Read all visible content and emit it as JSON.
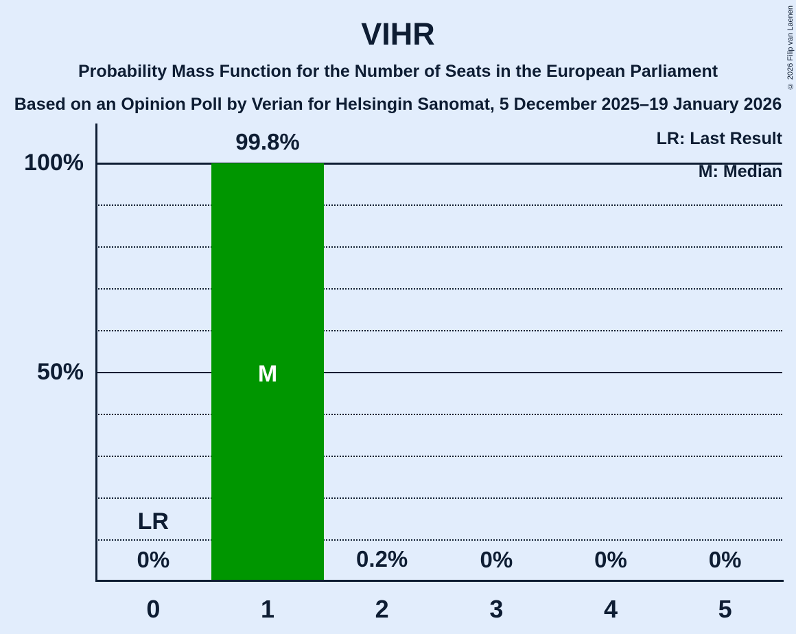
{
  "header": {
    "title": "VIHR",
    "subtitle": "Probability Mass Function for the Number of Seats in the European Parliament",
    "source_line": "Based on an Opinion Poll by Verian for Helsingin Sanomat, 5 December 2025–19 January 2026",
    "copyright": "© 2026 Filip van Laenen"
  },
  "legend": {
    "lr_label": "LR: Last Result",
    "m_label": "M: Median"
  },
  "colors": {
    "background": "#E2EDFC",
    "text": "#0E1D33",
    "bar": "#009600",
    "bar_annotation_text": "#FFFFFF"
  },
  "chart_data": {
    "type": "bar",
    "title": "VIHR — Probability Mass Function for the Number of Seats in the European Parliament",
    "categories": [
      "0",
      "1",
      "2",
      "3",
      "4",
      "5"
    ],
    "values": [
      0,
      99.8,
      0.2,
      0,
      0,
      0
    ],
    "value_labels": [
      "0%",
      "99.8%",
      "0.2%",
      "0%",
      "0%",
      "0%"
    ],
    "xlabel": "",
    "ylabel": "",
    "ylim": [
      0,
      100
    ],
    "yticks": [
      {
        "percent": 50,
        "label": "50%"
      },
      {
        "percent": 100,
        "label": "100%"
      }
    ],
    "gridlines": [
      {
        "percent": 10,
        "style": "dotted"
      },
      {
        "percent": 20,
        "style": "dotted"
      },
      {
        "percent": 30,
        "style": "dotted"
      },
      {
        "percent": 40,
        "style": "dotted"
      },
      {
        "percent": 50,
        "style": "solid-thin"
      },
      {
        "percent": 60,
        "style": "dotted"
      },
      {
        "percent": 70,
        "style": "dotted"
      },
      {
        "percent": 80,
        "style": "dotted"
      },
      {
        "percent": 90,
        "style": "dotted"
      },
      {
        "percent": 100,
        "style": "solid-thick"
      }
    ],
    "annotations": [
      {
        "text": "LR",
        "category_index": 0,
        "y_percent": 14.2,
        "color": "#0E1D33"
      },
      {
        "text": "M",
        "category_index": 1,
        "y_percent": 49.5,
        "color": "#FFFFFF"
      }
    ],
    "legend_position": "top-right",
    "grid": "horizontal dotted every 10%, solid at 50% and 100%"
  }
}
